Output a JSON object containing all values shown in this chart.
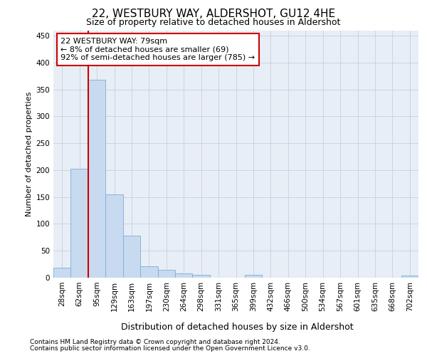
{
  "title": "22, WESTBURY WAY, ALDERSHOT, GU12 4HE",
  "subtitle": "Size of property relative to detached houses in Aldershot",
  "xlabel": "Distribution of detached houses by size in Aldershot",
  "ylabel": "Number of detached properties",
  "bar_labels": [
    "28sqm",
    "62sqm",
    "95sqm",
    "129sqm",
    "163sqm",
    "197sqm",
    "230sqm",
    "264sqm",
    "298sqm",
    "331sqm",
    "365sqm",
    "399sqm",
    "432sqm",
    "466sqm",
    "500sqm",
    "534sqm",
    "567sqm",
    "601sqm",
    "635sqm",
    "668sqm",
    "702sqm"
  ],
  "bar_values": [
    18,
    202,
    368,
    155,
    78,
    21,
    14,
    8,
    5,
    0,
    0,
    5,
    0,
    0,
    0,
    0,
    0,
    0,
    0,
    0,
    4
  ],
  "bar_color": "#c8daf0",
  "bar_edge_color": "#7aaed6",
  "vline_x": 1.5,
  "vline_color": "#cc0000",
  "annotation_text": "22 WESTBURY WAY: 79sqm\n← 8% of detached houses are smaller (69)\n92% of semi-detached houses are larger (785) →",
  "annotation_box_facecolor": "#ffffff",
  "annotation_box_edgecolor": "#cc0000",
  "grid_color": "#c5cfe0",
  "plot_bg_color": "#e8eef6",
  "fig_bg_color": "#ffffff",
  "footer_line1": "Contains HM Land Registry data © Crown copyright and database right 2024.",
  "footer_line2": "Contains public sector information licensed under the Open Government Licence v3.0.",
  "ylim": [
    0,
    460
  ],
  "yticks": [
    0,
    50,
    100,
    150,
    200,
    250,
    300,
    350,
    400,
    450
  ],
  "title_fontsize": 11,
  "subtitle_fontsize": 9,
  "ylabel_fontsize": 8,
  "xlabel_fontsize": 9,
  "tick_fontsize": 7.5,
  "footer_fontsize": 6.5,
  "annot_fontsize": 8
}
